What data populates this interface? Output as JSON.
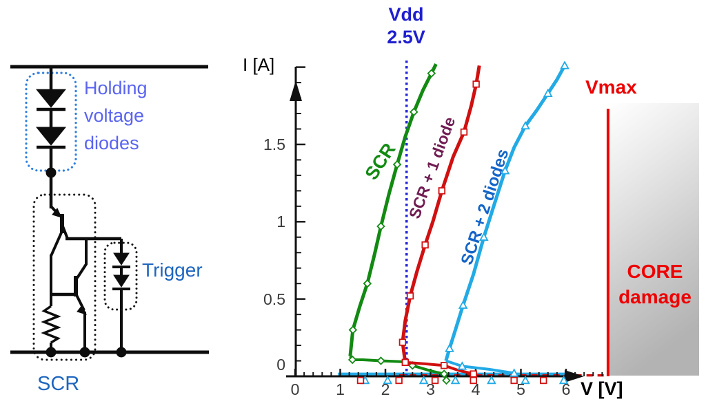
{
  "circuit": {
    "labels": {
      "holding_line1": "Holding",
      "holding_line2": "voltage",
      "holding_line3": "diodes",
      "trigger": "Trigger",
      "scr": "SCR"
    },
    "colors": {
      "holding_label": "#5a64f0",
      "holding_box": "#2f80e0",
      "name_labels": "#1e66c0",
      "wires": "#0d0d0d"
    }
  },
  "chart_data": {
    "type": "line",
    "title": "",
    "xlabel": "V [V]",
    "ylabel": "I [A]",
    "xlim": [
      0,
      7.2
    ],
    "ylim": [
      0,
      2.05
    ],
    "x_ticks": [
      0,
      1,
      2,
      3,
      4,
      5,
      6
    ],
    "y_ticks": [
      0,
      0.5,
      1,
      1.5
    ],
    "y_tick_labels": [
      "0",
      "0.5",
      "1",
      "1.5"
    ],
    "x_minor_step": 0.2,
    "y_minor_step": 0.1,
    "grid": false,
    "legend": "labels rotated along curves",
    "annotations": {
      "vdd": {
        "line1": "Vdd",
        "line2": "2.5V",
        "x": 2.5,
        "color": "#1f1fd0",
        "line_color": "#2525dd",
        "style": "dotted vertical"
      },
      "vmax": {
        "text": "Vmax",
        "x": 6.93,
        "color": "#ee0000",
        "style": "solid vertical"
      },
      "core": {
        "line1": "CORE",
        "line2": "damage",
        "color": "#ee0000",
        "region": "gray gradient right of Vmax"
      }
    },
    "series": [
      {
        "name": "SCR",
        "label": "SCR",
        "color": "#128a12",
        "label_color": "#128a12",
        "marker": "diamond",
        "rise": [
          [
            1.22,
            0.13
          ],
          [
            1.28,
            0.3
          ],
          [
            1.43,
            0.45
          ],
          [
            1.6,
            0.6
          ],
          [
            1.76,
            0.79
          ],
          [
            1.9,
            0.97
          ],
          [
            2.08,
            1.18
          ],
          [
            2.26,
            1.37
          ],
          [
            2.44,
            1.55
          ],
          [
            2.63,
            1.71
          ],
          [
            2.83,
            1.85
          ],
          [
            3.02,
            1.96
          ],
          [
            3.12,
            2.02
          ]
        ],
        "snapback": [
          [
            3.3,
            0.015
          ],
          [
            3.0,
            0.035
          ],
          [
            2.6,
            0.07
          ],
          [
            2.35,
            0.095
          ],
          [
            1.9,
            0.1
          ],
          [
            1.5,
            0.107
          ],
          [
            1.27,
            0.107
          ],
          [
            1.22,
            0.13
          ]
        ],
        "holding_voltage": 1.3,
        "trigger_voltage": 2.5
      },
      {
        "name": "SCR + 1 diode",
        "label": "SCR + 1 diode",
        "color": "#d01010",
        "label_color": "#701d52",
        "marker": "square",
        "rise": [
          [
            2.44,
            0.09
          ],
          [
            2.38,
            0.22
          ],
          [
            2.44,
            0.36
          ],
          [
            2.55,
            0.52
          ],
          [
            2.7,
            0.68
          ],
          [
            2.88,
            0.85
          ],
          [
            3.05,
            1.0
          ],
          [
            3.25,
            1.2
          ],
          [
            3.5,
            1.42
          ],
          [
            3.74,
            1.58
          ],
          [
            3.9,
            1.75
          ],
          [
            4.01,
            1.89
          ],
          [
            4.08,
            2.01
          ]
        ],
        "snapback": [
          [
            3.95,
            0.015
          ],
          [
            3.6,
            0.04
          ],
          [
            3.3,
            0.07
          ],
          [
            2.9,
            0.08
          ],
          [
            2.44,
            0.09
          ]
        ],
        "holding_voltage": 2.4,
        "trigger_voltage": 3.4
      },
      {
        "name": "SCR + 2 diodes",
        "label": "SCR + 2 diodes",
        "color": "#22aae5",
        "label_color": "#1565c8",
        "marker": "triangle",
        "rise": [
          [
            3.34,
            0.1
          ],
          [
            3.42,
            0.18
          ],
          [
            3.55,
            0.3
          ],
          [
            3.72,
            0.46
          ],
          [
            3.95,
            0.66
          ],
          [
            4.18,
            0.9
          ],
          [
            4.42,
            1.12
          ],
          [
            4.65,
            1.33
          ],
          [
            4.85,
            1.48
          ],
          [
            5.1,
            1.62
          ],
          [
            5.35,
            1.72
          ],
          [
            5.6,
            1.83
          ],
          [
            5.8,
            1.92
          ],
          [
            5.97,
            2.01
          ]
        ],
        "snapback": [
          [
            4.85,
            0.02
          ],
          [
            4.3,
            0.045
          ],
          [
            3.7,
            0.065
          ],
          [
            3.34,
            0.1
          ]
        ],
        "holding_voltage": 3.35,
        "trigger_voltage": 4.9
      }
    ],
    "leakage": {
      "cyan_line": {
        "from_v": 0.95,
        "to_v": 6.15,
        "i": 0.014,
        "color": "#22aae5"
      },
      "red_dashed": {
        "from_v": 2.3,
        "to_v": 6.88,
        "i": 0.006,
        "color": "#d01010"
      },
      "below_axis_markers": {
        "triangle_v": [
          1.55,
          2.05,
          2.85,
          3.55,
          4.35,
          5.1,
          5.95
        ],
        "square_v": [
          1.45,
          2.3,
          3.1,
          3.95,
          4.85,
          5.5
        ],
        "diamond_v": [
          3.35
        ]
      }
    }
  }
}
